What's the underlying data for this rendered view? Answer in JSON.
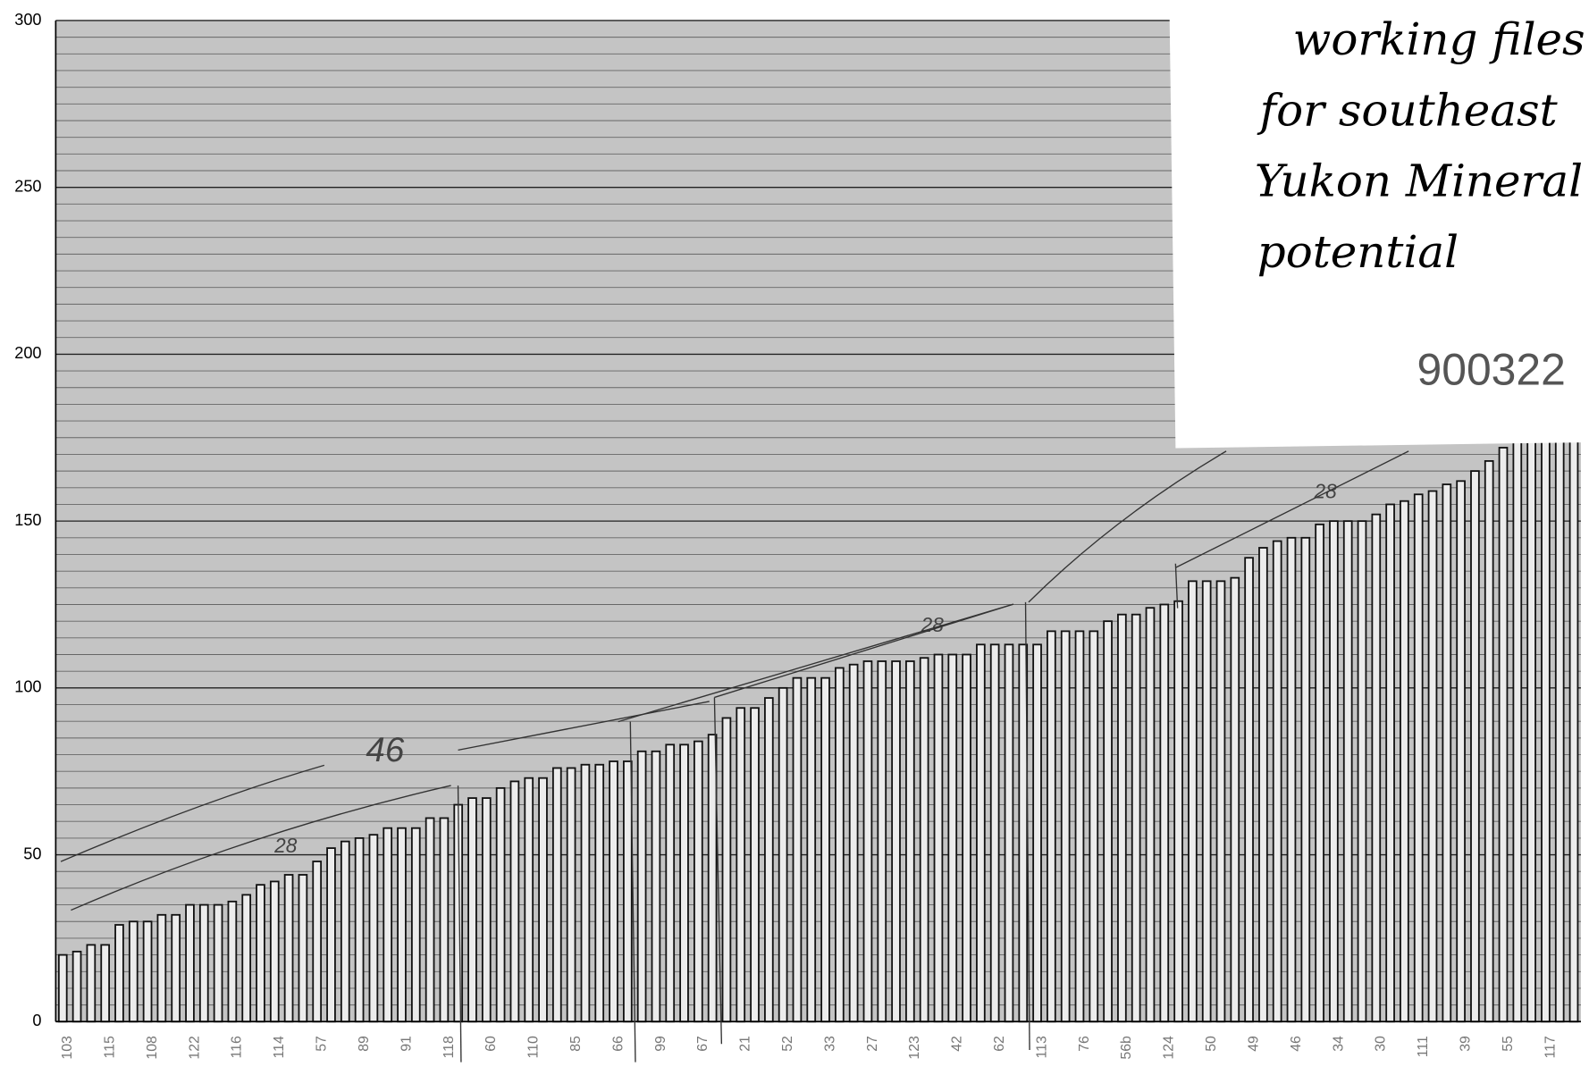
{
  "chart_data": {
    "type": "bar",
    "categories": [
      "103",
      null,
      null,
      "115",
      null,
      null,
      "108",
      null,
      null,
      "122",
      null,
      null,
      "116",
      null,
      null,
      "114",
      null,
      null,
      "57",
      null,
      null,
      "89",
      null,
      null,
      "91",
      null,
      null,
      "118",
      null,
      null,
      "60",
      null,
      null,
      "110",
      null,
      null,
      "85",
      null,
      null,
      "66",
      null,
      null,
      "99",
      null,
      null,
      "67",
      null,
      null,
      "21",
      null,
      null,
      "52",
      null,
      null,
      "33",
      null,
      null,
      "27",
      null,
      null,
      "123",
      null,
      null,
      "42",
      null,
      null,
      "62",
      null,
      null,
      "113",
      null,
      null,
      "76",
      null,
      null,
      "56b",
      null,
      null,
      "124",
      null,
      null,
      "50",
      null,
      null,
      "49",
      null,
      null,
      "46",
      null,
      null,
      "34",
      null,
      null,
      "30",
      null,
      null,
      "111",
      null,
      null,
      "39",
      null,
      null,
      "55",
      null,
      null,
      "117",
      null,
      null
    ],
    "values": [
      20,
      21,
      23,
      23,
      29,
      30,
      30,
      32,
      32,
      35,
      35,
      35,
      36,
      38,
      41,
      42,
      44,
      44,
      48,
      52,
      54,
      55,
      56,
      58,
      58,
      58,
      61,
      61,
      65,
      67,
      67,
      70,
      72,
      73,
      73,
      76,
      76,
      77,
      77,
      78,
      78,
      81,
      81,
      83,
      83,
      84,
      86,
      91,
      94,
      94,
      97,
      100,
      103,
      103,
      103,
      106,
      107,
      108,
      108,
      108,
      108,
      109,
      110,
      110,
      110,
      113,
      113,
      113,
      113,
      113,
      117,
      117,
      117,
      117,
      120,
      122,
      122,
      124,
      125,
      126,
      132,
      132,
      132,
      133,
      139,
      142,
      144,
      145,
      145,
      149,
      150,
      150,
      150,
      152,
      155,
      156,
      158,
      159,
      161,
      162,
      165,
      168,
      172,
      175,
      178,
      182,
      186,
      190
    ],
    "color": "#ececec",
    "ylim": [
      0,
      300
    ],
    "yticks": [
      0,
      50,
      100,
      150,
      200,
      250,
      300
    ],
    "minor_yticks": [
      5,
      10,
      15,
      20,
      25,
      30,
      35,
      40,
      45,
      55,
      60,
      65,
      70,
      75,
      80,
      85,
      90,
      95,
      105,
      110,
      115,
      120,
      125,
      130,
      135,
      140,
      145,
      155,
      160,
      165,
      170,
      175,
      180,
      185,
      190,
      195,
      205,
      210,
      215,
      220,
      225,
      230,
      235,
      240,
      245,
      255,
      260,
      265,
      270,
      275,
      280,
      285,
      290,
      295
    ],
    "grid": true,
    "annotations": [
      "46",
      "28",
      "28",
      "28"
    ]
  },
  "note": {
    "lines": [
      "working files",
      "for southeast",
      "Yukon Mineral",
      "potential"
    ],
    "number": "900322"
  }
}
